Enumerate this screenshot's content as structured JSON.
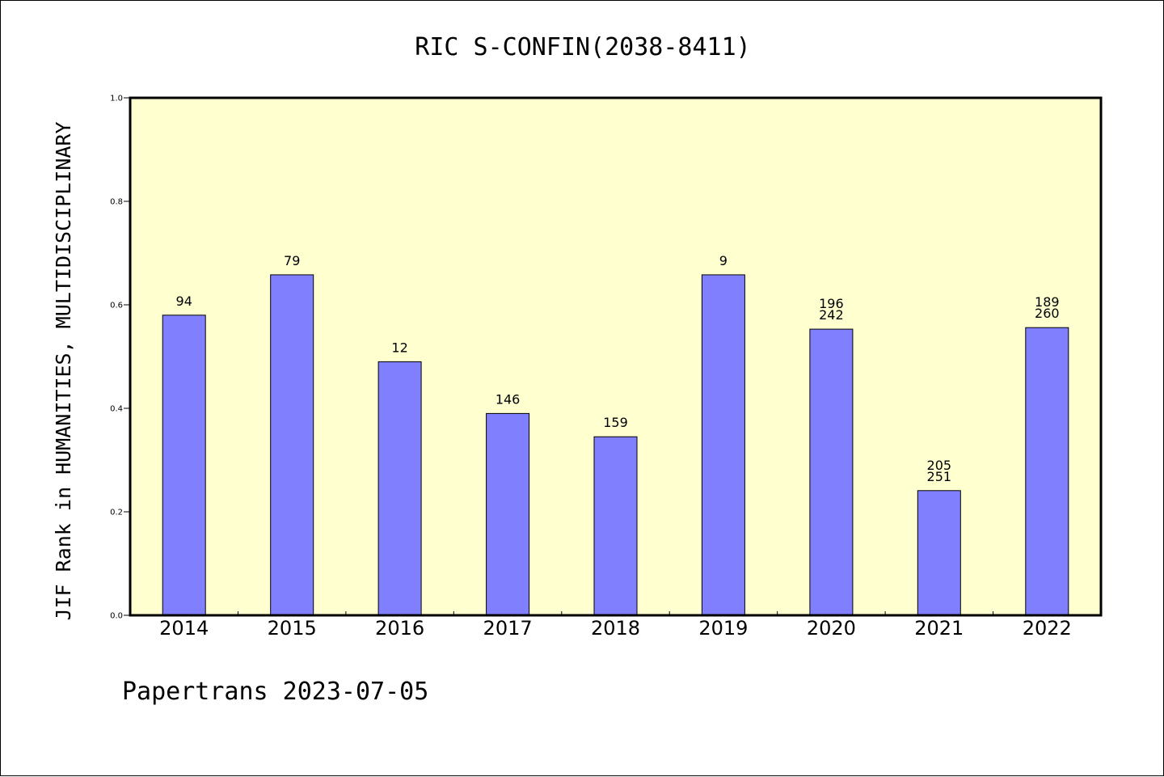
{
  "chart_data": {
    "type": "bar",
    "title": "RIC S-CONFIN(2038-8411)",
    "xlabel": "",
    "ylabel": "JIF Rank in HUMANITIES, MULTIDISCIPLINARY",
    "footer": "Papertrans 2023-07-05",
    "ylim": [
      0.0,
      1.0
    ],
    "yticks": [
      "0.0",
      "0.2",
      "0.4",
      "0.6",
      "0.8",
      "1.0"
    ],
    "grid": false,
    "categories": [
      "2014",
      "2015",
      "2016",
      "2017",
      "2018",
      "2019",
      "2020",
      "2021",
      "2022"
    ],
    "values": [
      0.58,
      0.658,
      0.49,
      0.39,
      0.345,
      0.658,
      0.553,
      0.241,
      0.556
    ],
    "labels": [
      [
        "94"
      ],
      [
        "79"
      ],
      [
        "12"
      ],
      [
        "146"
      ],
      [
        "159"
      ],
      [
        "9"
      ],
      [
        "196",
        "242"
      ],
      [
        "205",
        "251"
      ],
      [
        "189",
        "260"
      ]
    ],
    "colors": {
      "plot_background": "#ffffd0",
      "bar_fill": "#8080ff",
      "bar_edge": "#000000"
    }
  }
}
